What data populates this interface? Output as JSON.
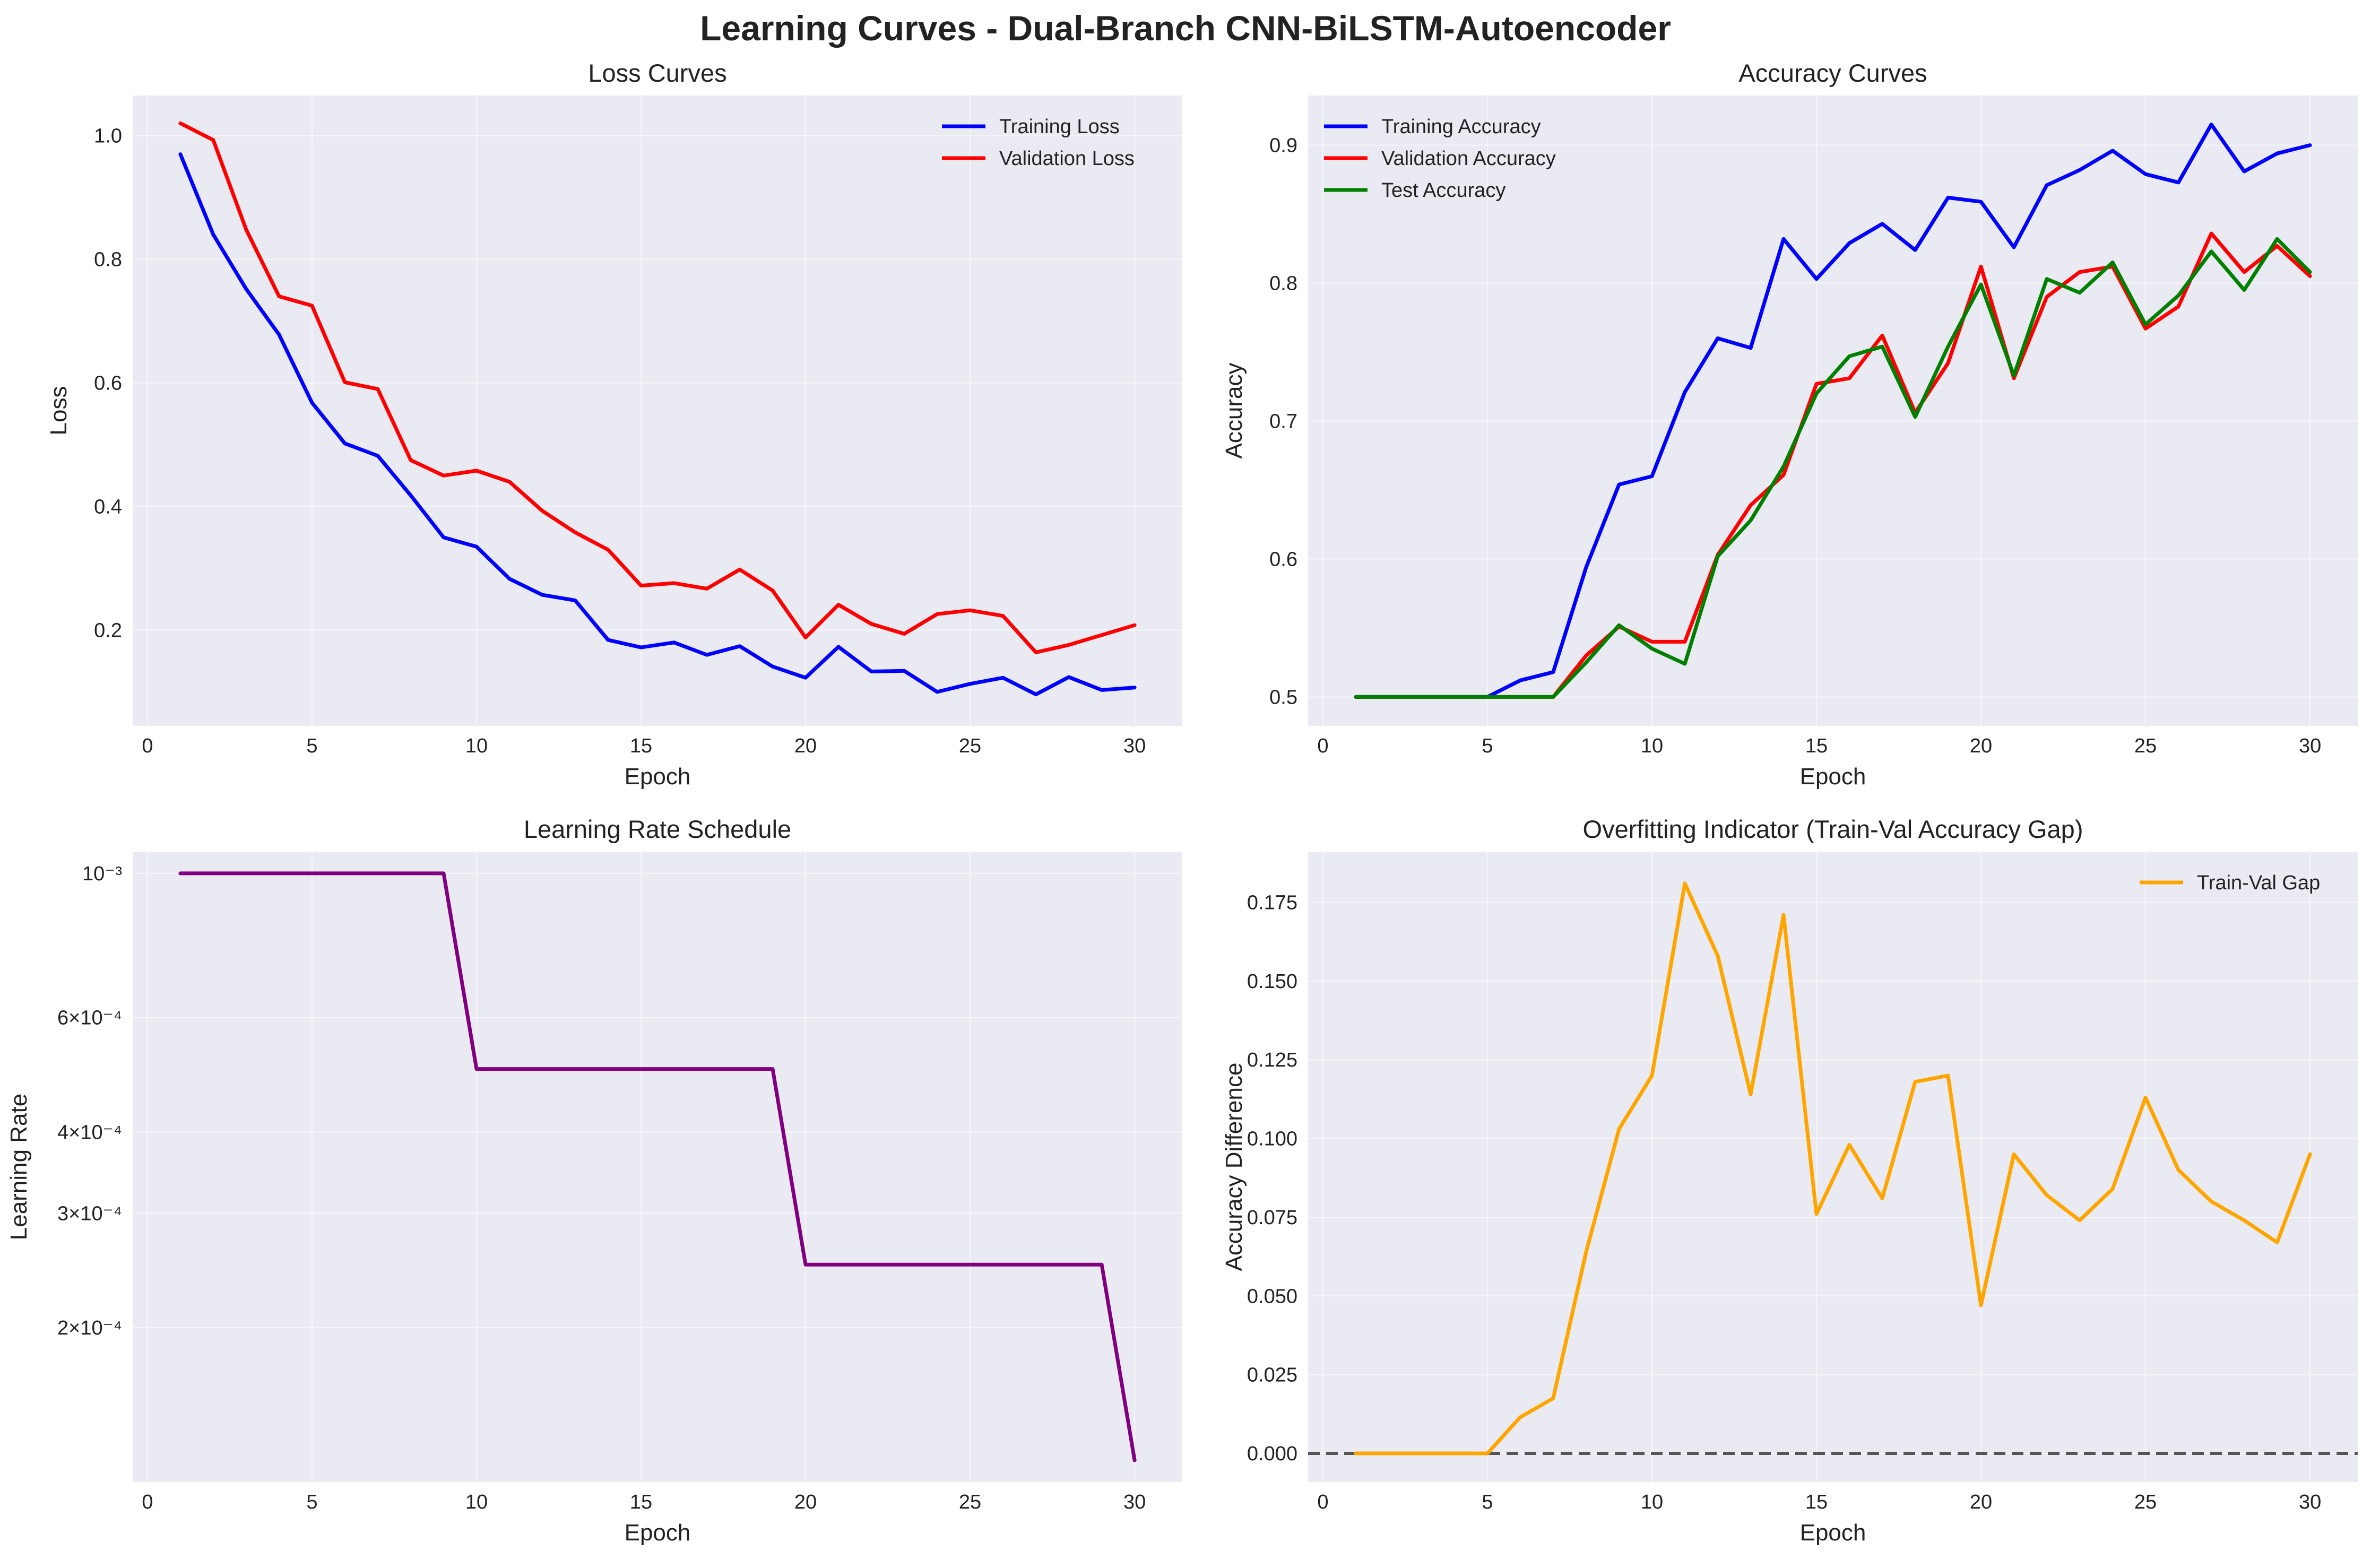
{
  "title": "Learning Curves - Dual-Branch CNN-BiLSTM-Autoencoder",
  "chart_data": [
    {
      "type": "line",
      "title": "Loss Curves",
      "xlabel": "Epoch",
      "ylabel": "Loss",
      "xlim": [
        -0.45,
        31.45
      ],
      "ylim": [
        0.045,
        1.065
      ],
      "xticks": [
        0,
        5,
        10,
        15,
        20,
        25,
        30
      ],
      "yticks": [
        0.2,
        0.4,
        0.6,
        0.8,
        1.0
      ],
      "ytick_labels": [
        "0.2",
        "0.4",
        "0.6",
        "0.8",
        "1.0"
      ],
      "grid": true,
      "legend": "top-right",
      "x": [
        1,
        2,
        3,
        4,
        5,
        6,
        7,
        8,
        9,
        10,
        11,
        12,
        13,
        14,
        15,
        16,
        17,
        18,
        19,
        20,
        21,
        22,
        23,
        24,
        25,
        26,
        27,
        28,
        29,
        30
      ],
      "series": [
        {
          "name": "Training Loss",
          "color": "#0000ff",
          "values": [
            0.97,
            0.84,
            0.752,
            0.678,
            0.568,
            0.502,
            0.482,
            0.418,
            0.35,
            0.335,
            0.283,
            0.257,
            0.248,
            0.184,
            0.172,
            0.18,
            0.16,
            0.174,
            0.141,
            0.123,
            0.173,
            0.133,
            0.134,
            0.1,
            0.113,
            0.123,
            0.096,
            0.124,
            0.103,
            0.107
          ]
        },
        {
          "name": "Validation Loss",
          "color": "#ff0000",
          "values": [
            1.02,
            0.993,
            0.848,
            0.74,
            0.725,
            0.601,
            0.59,
            0.475,
            0.45,
            0.458,
            0.44,
            0.393,
            0.358,
            0.33,
            0.272,
            0.276,
            0.267,
            0.298,
            0.264,
            0.188,
            0.241,
            0.21,
            0.194,
            0.226,
            0.232,
            0.223,
            0.164,
            0.176,
            0.192,
            0.208
          ]
        }
      ]
    },
    {
      "type": "line",
      "title": "Accuracy Curves",
      "xlabel": "Epoch",
      "ylabel": "Accuracy",
      "xlim": [
        -0.45,
        31.45
      ],
      "ylim": [
        0.479,
        0.936
      ],
      "xticks": [
        0,
        5,
        10,
        15,
        20,
        25,
        30
      ],
      "yticks": [
        0.5,
        0.6,
        0.7,
        0.8,
        0.9
      ],
      "ytick_labels": [
        "0.5",
        "0.6",
        "0.7",
        "0.8",
        "0.9"
      ],
      "grid": true,
      "legend": "top-left",
      "x": [
        1,
        2,
        3,
        4,
        5,
        6,
        7,
        8,
        9,
        10,
        11,
        12,
        13,
        14,
        15,
        16,
        17,
        18,
        19,
        20,
        21,
        22,
        23,
        24,
        25,
        26,
        27,
        28,
        29,
        30
      ],
      "series": [
        {
          "name": "Training Accuracy",
          "color": "#0000ff",
          "values": [
            0.5,
            0.5,
            0.5,
            0.5,
            0.5,
            0.512,
            0.518,
            0.594,
            0.654,
            0.66,
            0.721,
            0.76,
            0.753,
            0.832,
            0.803,
            0.829,
            0.843,
            0.824,
            0.862,
            0.859,
            0.826,
            0.871,
            0.882,
            0.896,
            0.879,
            0.873,
            0.915,
            0.881,
            0.894,
            0.9
          ]
        },
        {
          "name": "Validation Accuracy",
          "color": "#ff0000",
          "values": [
            0.5,
            0.5,
            0.5,
            0.5,
            0.5,
            0.5,
            0.5,
            0.53,
            0.551,
            0.54,
            0.54,
            0.603,
            0.639,
            0.661,
            0.727,
            0.731,
            0.762,
            0.706,
            0.742,
            0.812,
            0.731,
            0.79,
            0.808,
            0.812,
            0.767,
            0.783,
            0.836,
            0.808,
            0.827,
            0.805
          ]
        },
        {
          "name": "Test Accuracy",
          "color": "#008000",
          "values": [
            0.5,
            0.5,
            0.5,
            0.5,
            0.5,
            0.5,
            0.5,
            0.525,
            0.552,
            0.535,
            0.524,
            0.602,
            0.628,
            0.667,
            0.72,
            0.747,
            0.754,
            0.703,
            0.754,
            0.799,
            0.733,
            0.803,
            0.793,
            0.815,
            0.77,
            0.791,
            0.823,
            0.795,
            0.832,
            0.808
          ]
        }
      ]
    },
    {
      "type": "line",
      "title": "Learning Rate Schedule",
      "xlabel": "Epoch",
      "ylabel": "Learning Rate",
      "xlim": [
        -0.45,
        31.45
      ],
      "ylim": [
        0.0001157,
        0.00108
      ],
      "yscale": "log",
      "xticks": [
        0,
        5,
        10,
        15,
        20,
        25,
        30
      ],
      "yticks": [
        0.0002,
        0.0003,
        0.0004,
        0.0006,
        0.001
      ],
      "ytick_labels": [
        "2×10⁻⁴",
        "3×10⁻⁴",
        "4×10⁻⁴",
        "6×10⁻⁴",
        "10⁻³"
      ],
      "grid": true,
      "legend": "none",
      "x": [
        1,
        2,
        3,
        4,
        5,
        6,
        7,
        8,
        9,
        10,
        11,
        12,
        13,
        14,
        15,
        16,
        17,
        18,
        19,
        20,
        21,
        22,
        23,
        24,
        25,
        26,
        27,
        28,
        29,
        30
      ],
      "series": [
        {
          "name": "",
          "color": "#800080",
          "values": [
            0.001,
            0.001,
            0.001,
            0.001,
            0.001,
            0.001,
            0.001,
            0.001,
            0.001,
            0.0005,
            0.0005,
            0.0005,
            0.0005,
            0.0005,
            0.0005,
            0.0005,
            0.0005,
            0.0005,
            0.0005,
            0.00025,
            0.00025,
            0.00025,
            0.00025,
            0.00025,
            0.00025,
            0.00025,
            0.00025,
            0.00025,
            0.00025,
            0.000125
          ]
        }
      ]
    },
    {
      "type": "line",
      "title": "Overfitting Indicator (Train-Val Accuracy Gap)",
      "xlabel": "Epoch",
      "ylabel": "Accuracy Difference",
      "xlim": [
        -0.45,
        31.45
      ],
      "ylim": [
        -0.0091,
        0.1911
      ],
      "xticks": [
        0,
        5,
        10,
        15,
        20,
        25,
        30
      ],
      "yticks": [
        0.0,
        0.025,
        0.05,
        0.075,
        0.1,
        0.125,
        0.15,
        0.175
      ],
      "ytick_labels": [
        "0.000",
        "0.025",
        "0.050",
        "0.075",
        "0.100",
        "0.125",
        "0.150",
        "0.175"
      ],
      "grid": true,
      "legend": "top-right",
      "reference_line": {
        "y": 0.0,
        "style": "dashed",
        "color": "#555555"
      },
      "x": [
        1,
        2,
        3,
        4,
        5,
        6,
        7,
        8,
        9,
        10,
        11,
        12,
        13,
        14,
        15,
        16,
        17,
        18,
        19,
        20,
        21,
        22,
        23,
        24,
        25,
        26,
        27,
        28,
        29,
        30
      ],
      "series": [
        {
          "name": "Train-Val Gap",
          "color": "#ffa500",
          "values": [
            0,
            0,
            0,
            0,
            0,
            0.0115,
            0.0175,
            0.064,
            0.103,
            0.12,
            0.181,
            0.158,
            0.114,
            0.171,
            0.076,
            0.098,
            0.081,
            0.118,
            0.12,
            0.047,
            0.095,
            0.082,
            0.074,
            0.084,
            0.113,
            0.09,
            0.08,
            0.074,
            0.067,
            0.095
          ]
        }
      ]
    }
  ]
}
